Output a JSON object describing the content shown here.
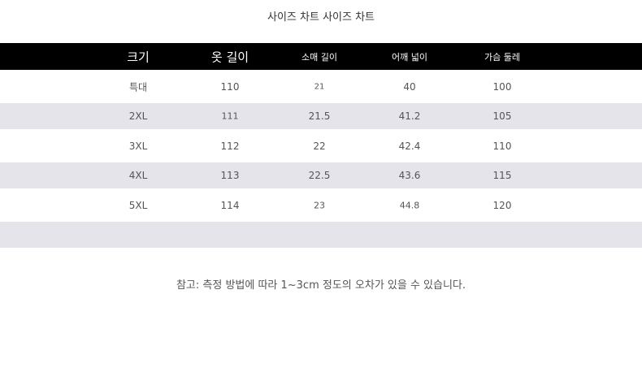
{
  "title": "사이즈 차트 사이즈 차트",
  "headers": [
    "크기",
    "옷 길이",
    "소매 길이",
    "어깨 넓이",
    "가슴 둘레"
  ],
  "rows": [
    [
      "특대",
      "110",
      "21",
      "40",
      "100"
    ],
    [
      "2XL",
      "111",
      "21.5",
      "41.2",
      "105"
    ],
    [
      "3XL",
      "112",
      "22",
      "42.4",
      "110"
    ],
    [
      "4XL",
      "113",
      "22.5",
      "43.6",
      "115"
    ],
    [
      "5XL",
      "114",
      "23",
      "44.8",
      "120"
    ]
  ],
  "note": "참고: 측정 방법에 따라 1~3cm 정도의 오차가 있을 수 있습니다.",
  "colors": {
    "header_bg": "#000000",
    "stripe": "#e4e4ea"
  }
}
